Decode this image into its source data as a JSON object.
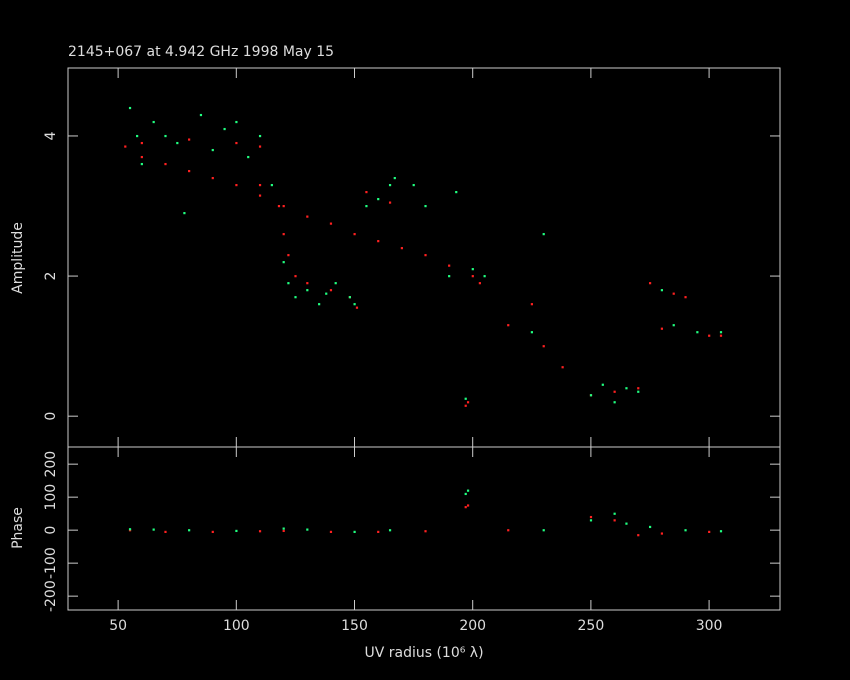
{
  "chart_data": [
    {
      "type": "scatter",
      "title": "2145+067 at 4.942 GHz 1998 May 15",
      "ylabel": "Amplitude",
      "xlim": [
        28.8,
        330
      ],
      "xticks": [
        50,
        100,
        150,
        200,
        250,
        300
      ],
      "ylim": [
        -0.44,
        4.97
      ],
      "yticks": [
        0,
        2,
        4
      ],
      "series": [
        {
          "color": "#ff2020",
          "x": [
            53,
            60,
            70,
            80,
            90,
            100,
            110,
            120,
            130,
            140,
            150,
            160,
            170,
            180,
            190,
            200,
            203,
            60,
            80,
            100,
            110,
            110,
            118,
            120,
            122,
            125,
            130,
            140,
            148,
            151,
            155,
            165,
            197,
            198,
            215,
            225,
            230,
            238,
            250,
            260,
            270,
            275,
            285,
            290,
            300,
            305,
            280
          ],
          "values": [
            3.85,
            3.7,
            3.6,
            3.5,
            3.4,
            3.3,
            3.15,
            3.0,
            2.85,
            2.75,
            2.6,
            2.5,
            2.4,
            2.3,
            2.15,
            2.0,
            1.9,
            3.9,
            3.95,
            3.9,
            3.85,
            3.3,
            3.0,
            2.6,
            2.3,
            2.0,
            1.9,
            1.8,
            1.7,
            1.55,
            3.2,
            3.05,
            0.15,
            0.2,
            1.3,
            1.6,
            1.0,
            0.7,
            0.3,
            0.35,
            0.4,
            1.9,
            1.75,
            1.7,
            1.15,
            1.15,
            1.25
          ]
        },
        {
          "color": "#20ff80",
          "x": [
            55,
            58,
            60,
            65,
            70,
            75,
            78,
            85,
            90,
            95,
            100,
            105,
            110,
            115,
            120,
            122,
            125,
            130,
            135,
            138,
            142,
            148,
            150,
            155,
            160,
            165,
            167,
            175,
            180,
            190,
            193,
            197,
            200,
            205,
            225,
            230,
            250,
            255,
            260,
            265,
            270,
            280,
            285,
            295,
            305
          ],
          "values": [
            4.4,
            4.0,
            3.6,
            4.2,
            4.0,
            3.9,
            2.9,
            4.3,
            3.8,
            4.1,
            4.2,
            3.7,
            4.0,
            3.3,
            2.2,
            1.9,
            1.7,
            1.8,
            1.6,
            1.75,
            1.9,
            1.7,
            1.6,
            3.0,
            3.1,
            3.3,
            3.4,
            3.3,
            3.0,
            2.0,
            3.2,
            0.25,
            2.1,
            2.0,
            1.2,
            2.6,
            0.3,
            0.45,
            0.2,
            0.4,
            0.35,
            1.8,
            1.3,
            1.2,
            1.2
          ]
        }
      ]
    },
    {
      "type": "scatter",
      "ylabel": "Phase",
      "xlabel": "UV radius  (10⁶ λ)",
      "xlim": [
        28.8,
        330
      ],
      "xticks": [
        50,
        100,
        150,
        200,
        250,
        300
      ],
      "ylim": [
        -242,
        252
      ],
      "yticks": [
        -200,
        -100,
        0,
        100,
        200
      ],
      "series": [
        {
          "color": "#ff2020",
          "x": [
            55,
            70,
            90,
            110,
            120,
            140,
            160,
            180,
            197,
            198,
            215,
            250,
            260,
            270,
            280,
            300
          ],
          "values": [
            0,
            -5,
            -5,
            -3,
            -2,
            -5,
            -5,
            -3,
            70,
            75,
            0,
            40,
            30,
            -15,
            -10,
            -5
          ]
        },
        {
          "color": "#20ff80",
          "x": [
            55,
            65,
            80,
            100,
            120,
            130,
            150,
            165,
            197,
            198,
            230,
            250,
            260,
            265,
            275,
            290,
            305
          ],
          "values": [
            3,
            2,
            0,
            -2,
            5,
            2,
            -5,
            0,
            110,
            120,
            0,
            30,
            50,
            20,
            10,
            0,
            -3
          ]
        }
      ]
    }
  ]
}
